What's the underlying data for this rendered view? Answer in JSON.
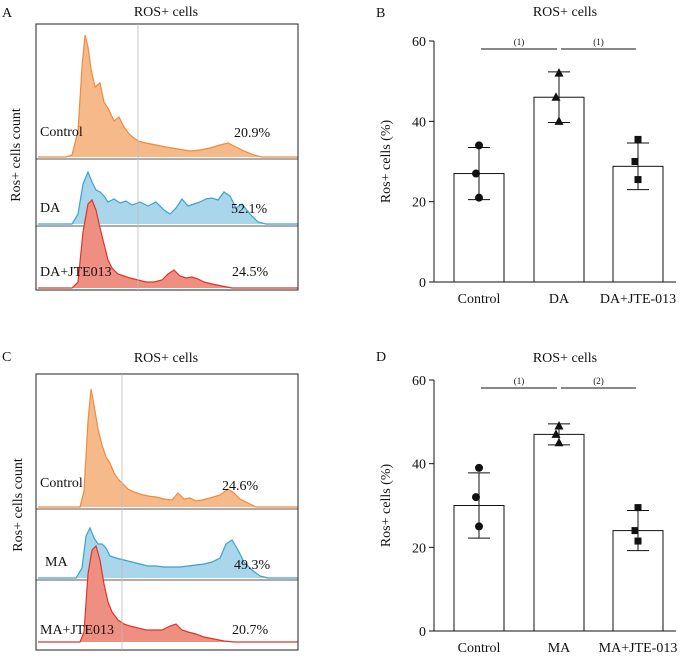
{
  "panels": {
    "A": {
      "letter": "A",
      "title": "ROS+ cells",
      "ylabel": "Ros+ cells  count",
      "rows": [
        {
          "label": "Control",
          "pct": "20.9%",
          "fill": "#f6b98a",
          "stroke": "#ef8b3e"
        },
        {
          "label": "DA",
          "pct": "52.1%",
          "fill": "#a9d6ea",
          "stroke": "#3aa3d0"
        },
        {
          "label": "DA+JTE013",
          "pct": "24.5%",
          "fill": "#ef8f82",
          "stroke": "#d9372a"
        }
      ]
    },
    "C": {
      "letter": "C",
      "title": "ROS+ cells",
      "ylabel": "Ros+ cells  count",
      "rows": [
        {
          "label": "Control",
          "pct": "24.6%",
          "fill": "#f6b98a",
          "stroke": "#ef8b3e"
        },
        {
          "label": "MA",
          "pct": "49.3%",
          "fill": "#a9d6ea",
          "stroke": "#3aa3d0"
        },
        {
          "label": "MA+JTE013",
          "pct": "20.7%",
          "fill": "#ef8f82",
          "stroke": "#d9372a"
        }
      ]
    }
  },
  "chart_data": [
    {
      "panel": "B",
      "type": "bar",
      "title": "ROS+ cells",
      "ylabel": "Ros+ cells (%)",
      "ylim": [
        0,
        60
      ],
      "yticks": [
        0,
        20,
        40,
        60
      ],
      "categories": [
        "Control",
        "DA",
        "DA+JTE-013"
      ],
      "values": [
        27,
        46,
        28.8
      ],
      "errors": [
        6.5,
        6.3,
        5.8
      ],
      "markers": [
        "circle",
        "triangle",
        "square"
      ],
      "points": [
        [
          34,
          27,
          21
        ],
        [
          52,
          46,
          40
        ],
        [
          35.5,
          30,
          25.5
        ]
      ],
      "significance": [
        {
          "from": 0,
          "to": 1,
          "label": "(1)"
        },
        {
          "from": 1,
          "to": 2,
          "label": "(1)"
        }
      ]
    },
    {
      "panel": "D",
      "type": "bar",
      "title": "ROS+ cells",
      "ylabel": "Ros+ cells (%)",
      "ylim": [
        0,
        60
      ],
      "yticks": [
        0,
        20,
        40,
        60
      ],
      "categories": [
        "Control",
        "MA",
        "MA+JTE-013"
      ],
      "values": [
        30,
        47,
        24
      ],
      "errors": [
        7.8,
        2.5,
        4.8
      ],
      "markers": [
        "circle",
        "triangle",
        "square"
      ],
      "points": [
        [
          39,
          32,
          25
        ],
        [
          49,
          47,
          45
        ],
        [
          29.5,
          24,
          21.5
        ]
      ],
      "significance": [
        {
          "from": 0,
          "to": 1,
          "label": "(1)"
        },
        {
          "from": 1,
          "to": 2,
          "label": "(2)"
        }
      ]
    }
  ]
}
